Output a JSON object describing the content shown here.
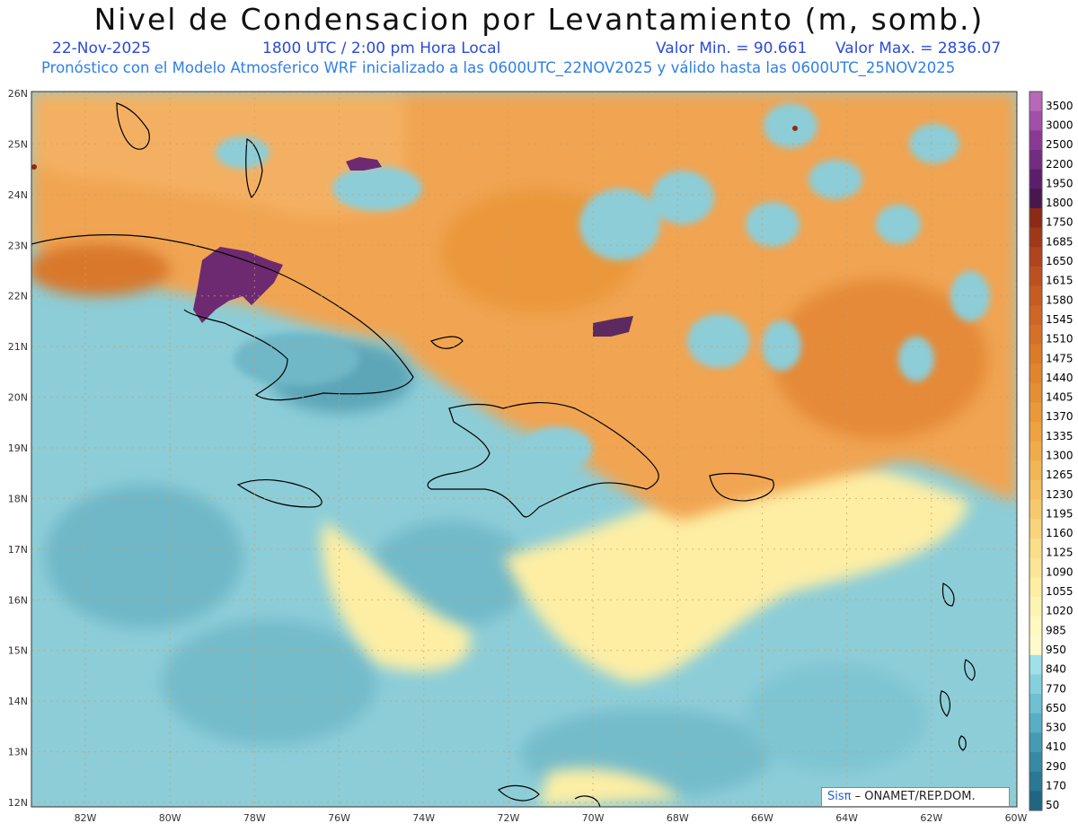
{
  "title": "Nivel de Condensacion por Levantamiento (m, somb.)",
  "date": "22-Nov-2025",
  "time": "1800 UTC / 2:00 pm Hora Local",
  "valor_min": "Valor Min. = 90.661",
  "valor_max": "Valor Max. = 2836.07",
  "forecast_line": "Pronóstico con el Modelo Atmosferico WRF inicializado a las 0600UTC_22NOV2025 y válido hasta las  0600UTC_25NOV2025",
  "logo": {
    "brand": "Sisπ",
    "text": " – ONAMET/REP.DOM."
  },
  "lat_labels": [
    "26N",
    "25N",
    "24N",
    "23N",
    "22N",
    "21N",
    "20N",
    "19N",
    "18N",
    "17N",
    "16N",
    "15N",
    "14N",
    "13N",
    "12N"
  ],
  "lon_labels": [
    "82W",
    "80W",
    "78W",
    "76W",
    "74W",
    "72W",
    "70W",
    "68W",
    "66W",
    "64W",
    "62W",
    "60W"
  ],
  "colorbar": {
    "labels": [
      "3500",
      "3000",
      "2500",
      "2200",
      "1950",
      "1800",
      "1750",
      "1685",
      "1650",
      "1615",
      "1580",
      "1545",
      "1510",
      "1475",
      "1440",
      "1405",
      "1370",
      "1335",
      "1300",
      "1265",
      "1230",
      "1195",
      "1160",
      "1125",
      "1090",
      "1055",
      "1020",
      "985",
      "950",
      "840",
      "770",
      "650",
      "530",
      "410",
      "290",
      "170",
      "50"
    ],
    "colors": [
      "#b868b8",
      "#a050a8",
      "#8a3a94",
      "#742c80",
      "#5c1e6a",
      "#4a1650",
      "#8e2a14",
      "#a03818",
      "#b0441c",
      "#bc5020",
      "#c65c22",
      "#ce6624",
      "#d67026",
      "#dc7a2a",
      "#e2842e",
      "#e68e34",
      "#ea983a",
      "#eea242",
      "#f0ac4a",
      "#f2b654",
      "#f4c060",
      "#f6ca6c",
      "#f8d47a",
      "#fade88",
      "#fce696",
      "#fdeea4",
      "#fef4b2",
      "#fff8c0",
      "#fffacc",
      "#9fe0ea",
      "#86d0de",
      "#6ec0d2",
      "#58aec4",
      "#449cb4",
      "#368aa4",
      "#2a7894",
      "#1e6682"
    ]
  },
  "colors": {
    "ocean": "#8ccdd8",
    "land_warm": "#f1a451",
    "land_hot": "#d9782c",
    "extreme": "#6e2a70",
    "coast": "#000000",
    "grid": "#c8a068"
  }
}
